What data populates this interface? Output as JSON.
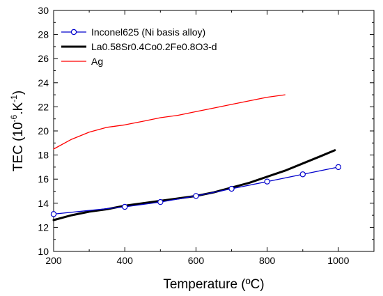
{
  "chart_data": {
    "type": "line",
    "xlabel": "Temperature (ºC)",
    "ylabel_parts": [
      "TEC (10",
      "-6",
      ".K",
      "-1",
      ")"
    ],
    "xlim": [
      200,
      1100
    ],
    "ylim": [
      10,
      30
    ],
    "x_ticks": [
      "200",
      "400",
      "600",
      "800",
      "1000"
    ],
    "y_ticks": [
      "10",
      "12",
      "14",
      "16",
      "18",
      "20",
      "22",
      "24",
      "26",
      "28",
      "30"
    ],
    "grid": false,
    "legend_position": "top-left",
    "series": [
      {
        "name": "Inconel625 (Ni basis alloy)",
        "color": "#0000cc",
        "marker": "open-circle",
        "x": [
          200,
          400,
          500,
          600,
          700,
          800,
          900,
          1000
        ],
        "y": [
          13.1,
          13.7,
          14.1,
          14.6,
          15.2,
          15.8,
          16.4,
          17.0
        ]
      },
      {
        "name": "La0.58Sr0.4Co0.2Fe0.8O3-d",
        "color": "#000000",
        "marker": "none",
        "x": [
          200,
          250,
          300,
          350,
          400,
          450,
          500,
          550,
          600,
          650,
          700,
          750,
          800,
          850,
          900,
          950,
          990
        ],
        "y": [
          12.6,
          13.0,
          13.3,
          13.5,
          13.8,
          14.0,
          14.2,
          14.4,
          14.6,
          14.9,
          15.3,
          15.7,
          16.2,
          16.7,
          17.3,
          17.9,
          18.4
        ]
      },
      {
        "name": "Ag",
        "color": "#ff0000",
        "marker": "none",
        "x": [
          200,
          250,
          300,
          350,
          400,
          450,
          500,
          550,
          600,
          650,
          700,
          750,
          800,
          850
        ],
        "y": [
          18.5,
          19.3,
          19.9,
          20.3,
          20.5,
          20.8,
          21.1,
          21.3,
          21.6,
          21.9,
          22.2,
          22.5,
          22.8,
          23.0
        ]
      }
    ]
  }
}
